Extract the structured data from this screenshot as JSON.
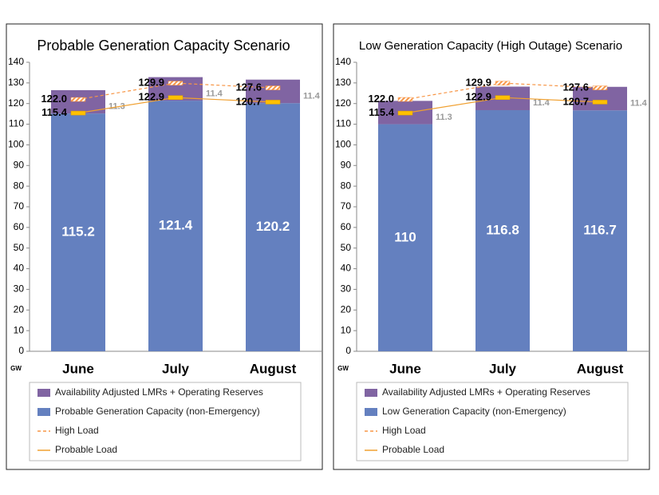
{
  "chart_data": [
    {
      "type": "bar",
      "title": "Probable Generation Capacity Scenario",
      "y_label": "GW",
      "categories": [
        "June",
        "July",
        "August"
      ],
      "ylim": [
        0,
        140
      ],
      "yticks": [
        0,
        10,
        20,
        30,
        40,
        50,
        60,
        70,
        80,
        90,
        100,
        110,
        120,
        130,
        140
      ],
      "series": [
        {
          "name": "Availability Adjusted LMRs + Operating Reserves",
          "type": "bar",
          "stack_order": 1,
          "color": "#8064a2",
          "values": [
            11.3,
            11.4,
            11.4
          ]
        },
        {
          "name": "Probable Generation Capacity (non-Emergency)",
          "type": "bar",
          "stack_order": 0,
          "color": "#6480bf",
          "values": [
            115.2,
            121.4,
            120.2
          ]
        },
        {
          "name": "High Load",
          "type": "line",
          "dashed": true,
          "color": "#f79646",
          "values": [
            122.0,
            129.9,
            127.6
          ],
          "value_labels": [
            "122.0",
            "129.9",
            "127.6"
          ]
        },
        {
          "name": "Probable Load",
          "type": "line",
          "dashed": false,
          "color": "#f0a030",
          "values": [
            115.4,
            122.9,
            120.7
          ]
        }
      ]
    },
    {
      "type": "bar",
      "title": "Low Generation Capacity (High Outage) Scenario",
      "y_label": "GW",
      "categories": [
        "June",
        "July",
        "August"
      ],
      "ylim": [
        0,
        140
      ],
      "yticks": [
        0,
        10,
        20,
        30,
        40,
        50,
        60,
        70,
        80,
        90,
        100,
        110,
        120,
        130,
        140
      ],
      "series": [
        {
          "name": "Availability Adjusted LMRs + Operating Reserves",
          "type": "bar",
          "stack_order": 1,
          "color": "#8064a2",
          "values": [
            11.3,
            11.4,
            11.4
          ]
        },
        {
          "name": "Low Generation Capacity (non-Emergency)",
          "type": "bar",
          "stack_order": 0,
          "color": "#6480bf",
          "values": [
            110,
            116.8,
            116.7
          ]
        },
        {
          "name": "High Load",
          "type": "line",
          "dashed": true,
          "color": "#f79646",
          "values": [
            122.0,
            129.9,
            127.6
          ],
          "value_labels": [
            "122.0",
            "129.9",
            "127.6"
          ]
        },
        {
          "name": "Probable Load",
          "type": "line",
          "dashed": false,
          "color": "#f0a030",
          "values": [
            115.4,
            122.9,
            120.7
          ]
        }
      ]
    }
  ]
}
